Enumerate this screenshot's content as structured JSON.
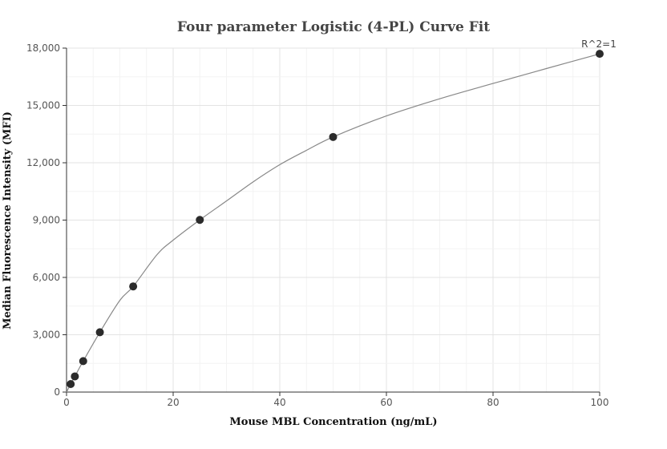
{
  "chart_data": {
    "type": "scatter",
    "title": "Four parameter Logistic (4-PL) Curve Fit",
    "xlabel": "Mouse MBL Concentration (ng/mL)",
    "ylabel": "Median Fluorescence Intensity (MFI)",
    "xlim": [
      0,
      100
    ],
    "ylim": [
      0,
      18000
    ],
    "x_ticks": [
      0,
      20,
      40,
      60,
      80,
      100
    ],
    "x_tick_labels": [
      "0",
      "20",
      "40",
      "60",
      "80",
      "100"
    ],
    "y_ticks": [
      0,
      3000,
      6000,
      9000,
      12000,
      15000,
      18000
    ],
    "y_tick_labels": [
      "0",
      "3,000",
      "6,000",
      "9,000",
      "12,000",
      "15,000",
      "18,000"
    ],
    "grid": true,
    "series": [
      {
        "x": [
          0.78,
          1.56,
          3.125,
          6.25,
          12.5,
          25,
          50,
          100
        ],
        "y": [
          420,
          820,
          1620,
          3130,
          5530,
          9010,
          13350,
          17700
        ]
      }
    ],
    "fit_curve": {
      "model": "4PL",
      "x": [
        0,
        0.78,
        1.56,
        3.125,
        6.25,
        10,
        12.5,
        17,
        20,
        25,
        30,
        35,
        40,
        45,
        50,
        60,
        70,
        80,
        90,
        100
      ],
      "y": [
        0,
        420,
        820,
        1620,
        3130,
        4800,
        5530,
        7200,
        7950,
        9010,
        10000,
        11000,
        11900,
        12650,
        13350,
        14450,
        15350,
        16150,
        16930,
        17700
      ]
    },
    "annotations": [
      {
        "text": "R^2=1",
        "x": 100,
        "y": 17700
      }
    ]
  }
}
